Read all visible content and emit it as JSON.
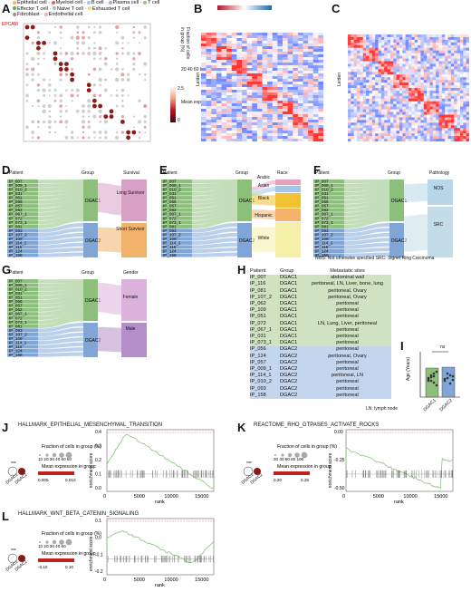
{
  "panels": {
    "A": "A",
    "B": "B",
    "C": "C",
    "D": "D",
    "E": "E",
    "F": "F",
    "G": "G",
    "H": "H",
    "I": "I",
    "J": "J",
    "K": "K",
    "L": "L"
  },
  "legendA": {
    "line1": "Epithelial cell",
    "line1b": "Myeloid cell",
    "line1c": "B cell",
    "line1d": "Plasma cell",
    "line1e": "T cell",
    "line2a": "Effector T cell",
    "line2b": "Naive T cell",
    "line2c": "Exhausted T cell",
    "line3a": "Fibroblast",
    "line3b": "Endothelial cell",
    "fraction_title": "Fraction of cells in group (%)",
    "fraction_ticks": "20 40 60 80 100",
    "mean_title": "Mean expression in group",
    "mean_min": "0",
    "mean_max": "2.5",
    "gene": "EPCAM"
  },
  "headers": {
    "patient": "Patient",
    "group": "Group",
    "survival": "Survival",
    "race": "Race",
    "pathology": "Pathology",
    "gender": "Gender",
    "metastatic": "Metastatic sites"
  },
  "patients": [
    "IP_007",
    "IP_009_1",
    "IP_010_2",
    "IP_031",
    "IP_051",
    "IP_056",
    "IP_057",
    "IP_062",
    "IP_067_1",
    "IP_072",
    "IP_073_1",
    "IP_081",
    "IP_093",
    "IP_107_2",
    "IP_109",
    "IP_114_1",
    "IP_116",
    "IP_124",
    "IP_158"
  ],
  "groups": {
    "g1": "DGAC1",
    "g2": "DGAC2"
  },
  "survival": {
    "long": "Long Survivor",
    "short": "Short Survivor"
  },
  "race": {
    "arabic": "Arabic",
    "asian": "Asian",
    "black": "Black",
    "hispanic": "Hispanic",
    "white": "White"
  },
  "pathology": {
    "nos": "NOS",
    "src": "SRC",
    "note": "NOS: Not otherwise specified  SRC: Signet Ring Carcinoma"
  },
  "gender": {
    "female": "Female",
    "male": "Male"
  },
  "table": [
    {
      "p": "IP_007",
      "g": "DGAC1",
      "s": "abdominal wall"
    },
    {
      "p": "IP_116",
      "g": "DGAC1",
      "s": "peritoneal, LN, Liver, bone, lung"
    },
    {
      "p": "IP_081",
      "g": "DGAC1",
      "s": "peritoneal, Ovary"
    },
    {
      "p": "IP_107_2",
      "g": "DGAC1",
      "s": "peritoneal, Ovary"
    },
    {
      "p": "IP_062",
      "g": "DGAC1",
      "s": "peritoneal"
    },
    {
      "p": "IP_109",
      "g": "DGAC1",
      "s": "peritoneal"
    },
    {
      "p": "IP_051",
      "g": "DGAC1",
      "s": "peritoneal"
    },
    {
      "p": "IP_072",
      "g": "DGAC1",
      "s": "LN, Lung, Liver, peritoneal"
    },
    {
      "p": "IP_067_1",
      "g": "DGAC1",
      "s": "peritoneal"
    },
    {
      "p": "IP_031",
      "g": "DGAC1",
      "s": "peritoneal"
    },
    {
      "p": "IP_073_1",
      "g": "DGAC1",
      "s": "peritoneal"
    },
    {
      "p": "IP_056",
      "g": "DGAC2",
      "s": "peritoneal"
    },
    {
      "p": "IP_124",
      "g": "DGAC2",
      "s": "peritoneal, Ovary"
    },
    {
      "p": "IP_057",
      "g": "DGAC2",
      "s": "peritoneal"
    },
    {
      "p": "IP_009_1",
      "g": "DGAC2",
      "s": "peritoneal"
    },
    {
      "p": "IP_114_1",
      "g": "DGAC2",
      "s": "peritoneal, LN"
    },
    {
      "p": "IP_010_2",
      "g": "DGAC2",
      "s": "peritoneal"
    },
    {
      "p": "IP_093",
      "g": "DGAC2",
      "s": "peritoneal"
    },
    {
      "p": "IP_158",
      "g": "DGAC2",
      "s": "peritoneal"
    }
  ],
  "table_note": "LN: lymph node",
  "panelI": {
    "ylabel": "Age (Years)",
    "ns": "ns",
    "g1": "DGAC1",
    "g2": "DGAC2",
    "yticks": [
      "0",
      "20",
      "40",
      "60",
      "80"
    ]
  },
  "gsea": {
    "J_title": "HALLMARK_EPITHELIAL_MESENCHYMAL_TRANSITION",
    "K_title": "REACTOME_RHO_GTPASES_ACTIVATE_ROCKS",
    "L_title": "HALLMARK_WNT_BETA_CATENIN_SIGNALING",
    "ylabel": "enrichment score",
    "xlabel": "rank",
    "xticks": [
      "0",
      "5000",
      "10000",
      "15000"
    ],
    "frac_title": "Fraction of cells in group (%)",
    "frac_J": "10 20 30 40 50 60",
    "frac_K": "20 40 60 80 100",
    "frac_L": "10 20 30 40 50",
    "mean_title": "Mean expression in group",
    "J_mean": [
      "0.005",
      "0.010"
    ],
    "K_mean": [
      "0.20",
      "0.25"
    ],
    "L_mean": [
      "-0.10",
      "0.10"
    ],
    "sig": "***",
    "g1": "DGAC1",
    "g2": "DGAC2",
    "J_yticks": [
      "0.4",
      "0.3",
      "0.2",
      "0.1",
      "0.0"
    ],
    "K_yticks": [
      "0.00",
      "-0.25",
      "-0.50"
    ],
    "L_yticks": [
      "0.1",
      "0.0",
      "-0.1",
      "-0.2"
    ]
  },
  "heat": {
    "leiden": "Leiden",
    "B_scale": [
      "2",
      "1",
      "0",
      "-1",
      "-2"
    ]
  },
  "colors": {
    "dgac1": "#8cc07a",
    "dgac2": "#7fa6d6",
    "long": "#d9a0c6",
    "short": "#f0b26a",
    "white": "#f5f0a8",
    "src": "#c4dce8"
  }
}
